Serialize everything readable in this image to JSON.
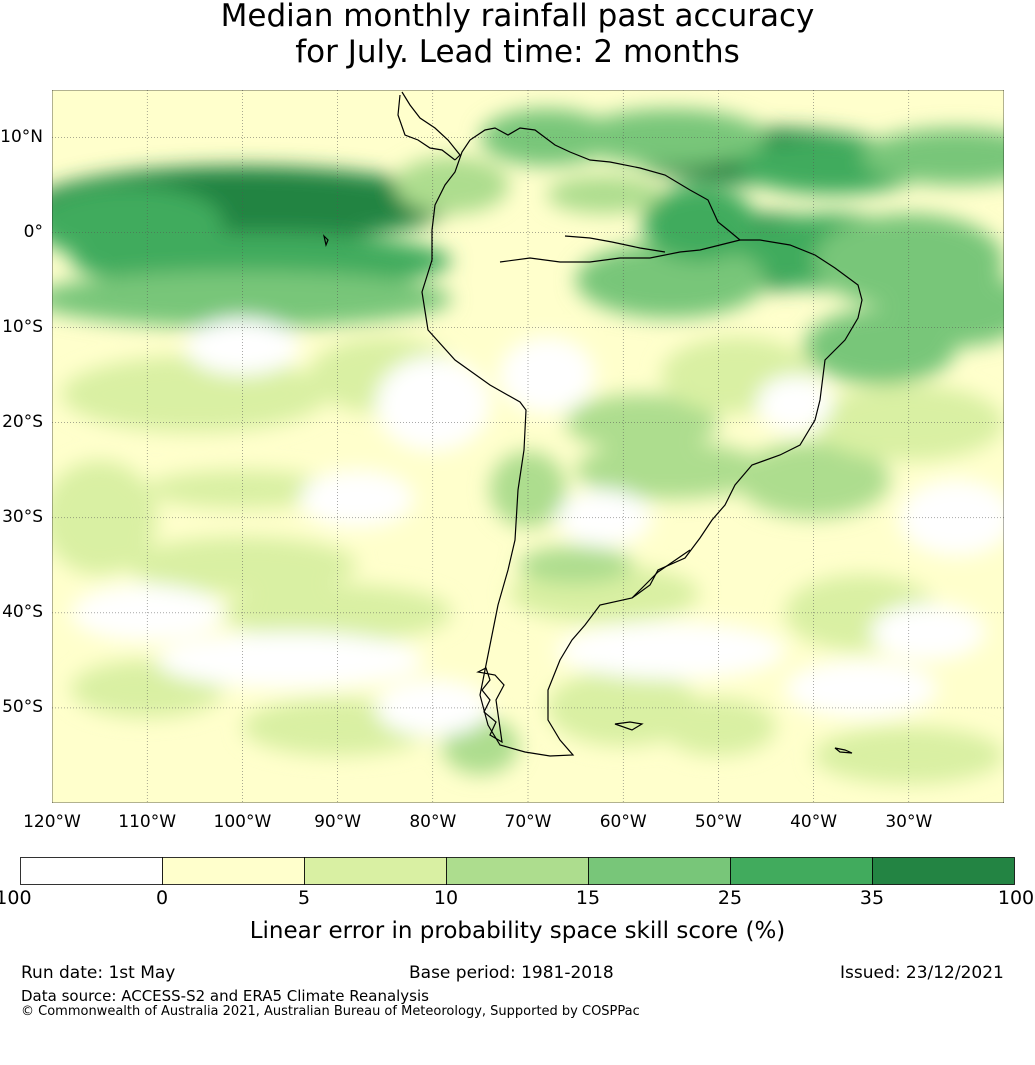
{
  "title_line1": "Median monthly rainfall past accuracy",
  "title_line2": "for July. Lead time: 2 months",
  "map": {
    "lat_labels": [
      "10°N",
      "0°",
      "10°S",
      "20°S",
      "30°S",
      "40°S",
      "50°S"
    ],
    "lon_labels": [
      "120°W",
      "110°W",
      "100°W",
      "90°W",
      "80°W",
      "70°W",
      "60°W",
      "50°W",
      "40°W",
      "30°W"
    ],
    "extent": {
      "lon_min": -120,
      "lon_max": -20,
      "lat_min": -60,
      "lat_max": 15
    }
  },
  "colorbar": {
    "ticks": [
      "-100",
      "0",
      "5",
      "10",
      "15",
      "25",
      "35",
      "100"
    ],
    "colors": [
      "#ffffff",
      "#ffffcc",
      "#d9f0a3",
      "#addd8e",
      "#78c679",
      "#41ab5d",
      "#238443"
    ],
    "label": "Linear error in probability space skill score (%)"
  },
  "footer": {
    "run_date": "Run date: 1st May",
    "base_period": "Base period: 1981-2018",
    "issued": "Issued: 23/12/2021",
    "data_source": "Data source: ACCESS-S2 and ERA5 Climate Reanalysis",
    "copyright": "© Commonwealth of Australia 2021, Australian Bureau of Meteorology, Supported by COSPPac"
  }
}
